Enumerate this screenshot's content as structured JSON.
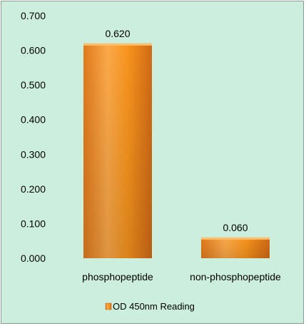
{
  "chart_data": {
    "type": "bar",
    "categories": [
      "phosphopeptide",
      "non-phosphopeptide"
    ],
    "series": [
      {
        "name": "OD 450nm Reading",
        "values": [
          0.62,
          0.06
        ]
      }
    ],
    "data_labels": [
      "0.620",
      "0.060"
    ],
    "yticks": [
      "0.000",
      "0.100",
      "0.200",
      "0.300",
      "0.400",
      "0.500",
      "0.600",
      "0.700"
    ],
    "ylim": [
      0,
      0.7
    ],
    "legend": {
      "placement": "bottom",
      "label": "OD 450nm Reading"
    },
    "grid": false,
    "colors": {
      "bar_light": "#fbb040",
      "bar_mid": "#f7941d",
      "bar_dark": "#d9731a",
      "background": "#cbeedd"
    }
  }
}
